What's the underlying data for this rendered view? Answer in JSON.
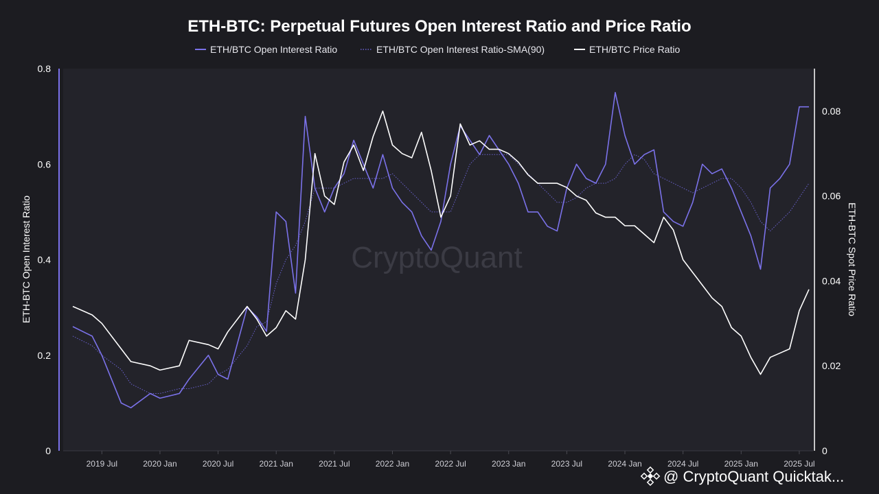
{
  "chart_data": {
    "type": "line",
    "title": "ETH-BTC: Perpetual Futures Open Interest Ratio and Price Ratio",
    "ylabel_left": "ETH-BTC Open Interest Ratio",
    "ylabel_right": "ETH-BTC Spot Price Ratio",
    "ylim_left": [
      0,
      0.8
    ],
    "ylim_right": [
      0,
      0.09
    ],
    "yticks_left": [
      "0",
      "0.2",
      "0.4",
      "0.6",
      "0.8"
    ],
    "yticks_right": [
      "0",
      "0.02",
      "0.04",
      "0.06",
      "0.08"
    ],
    "x_tick_labels": [
      "2019 Jul",
      "2020 Jan",
      "2020 Jul",
      "2021 Jan",
      "2021 Jul",
      "2022 Jan",
      "2022 Jul",
      "2023 Jan",
      "2023 Jul",
      "2024 Jan",
      "2024 Jul",
      "2025 Jan",
      "2025 Jul"
    ],
    "legend_position": "top-center",
    "grid": false,
    "x_dates": [
      "2019-04",
      "2019-06",
      "2019-07",
      "2019-09",
      "2019-10",
      "2019-12",
      "2020-01",
      "2020-03",
      "2020-04",
      "2020-06",
      "2020-07",
      "2020-08",
      "2020-10",
      "2020-11",
      "2020-12",
      "2021-01",
      "2021-02",
      "2021-03",
      "2021-04",
      "2021-05",
      "2021-06",
      "2021-07",
      "2021-08",
      "2021-09",
      "2021-10",
      "2021-11",
      "2021-12",
      "2022-01",
      "2022-02",
      "2022-03",
      "2022-04",
      "2022-05",
      "2022-06",
      "2022-07",
      "2022-08",
      "2022-09",
      "2022-10",
      "2022-11",
      "2022-12",
      "2023-01",
      "2023-02",
      "2023-03",
      "2023-04",
      "2023-05",
      "2023-06",
      "2023-07",
      "2023-08",
      "2023-09",
      "2023-10",
      "2023-11",
      "2023-12",
      "2024-01",
      "2024-02",
      "2024-03",
      "2024-04",
      "2024-05",
      "2024-06",
      "2024-07",
      "2024-08",
      "2024-09",
      "2024-10",
      "2024-11",
      "2024-12",
      "2025-01",
      "2025-02",
      "2025-03",
      "2025-04",
      "2025-05",
      "2025-06",
      "2025-07",
      "2025-08"
    ],
    "series": [
      {
        "name": "ETH/BTC Open Interest Ratio",
        "axis": "left",
        "color": "#7b72ea",
        "style": "solid",
        "values": [
          0.26,
          0.24,
          0.2,
          0.1,
          0.09,
          0.12,
          0.11,
          0.12,
          0.15,
          0.2,
          0.16,
          0.15,
          0.3,
          0.28,
          0.25,
          0.5,
          0.48,
          0.33,
          0.7,
          0.55,
          0.5,
          0.55,
          0.58,
          0.65,
          0.6,
          0.55,
          0.62,
          0.55,
          0.52,
          0.5,
          0.45,
          0.42,
          0.48,
          0.6,
          0.68,
          0.65,
          0.62,
          0.66,
          0.63,
          0.6,
          0.56,
          0.5,
          0.5,
          0.47,
          0.46,
          0.55,
          0.6,
          0.57,
          0.56,
          0.6,
          0.75,
          0.66,
          0.6,
          0.62,
          0.63,
          0.5,
          0.48,
          0.47,
          0.52,
          0.6,
          0.58,
          0.59,
          0.55,
          0.5,
          0.45,
          0.38,
          0.55,
          0.57,
          0.6,
          0.72,
          0.72
        ]
      },
      {
        "name": "ETH/BTC Open Interest Ratio-SMA(90)",
        "axis": "left",
        "color": "#6a62d0",
        "style": "dotted",
        "values": [
          0.24,
          0.22,
          0.2,
          0.17,
          0.14,
          0.12,
          0.12,
          0.13,
          0.13,
          0.14,
          0.16,
          0.17,
          0.22,
          0.26,
          0.27,
          0.35,
          0.4,
          0.43,
          0.48,
          0.55,
          0.55,
          0.55,
          0.56,
          0.57,
          0.57,
          0.57,
          0.57,
          0.58,
          0.56,
          0.54,
          0.52,
          0.5,
          0.5,
          0.5,
          0.55,
          0.6,
          0.62,
          0.62,
          0.62,
          0.62,
          0.6,
          0.58,
          0.56,
          0.54,
          0.52,
          0.52,
          0.53,
          0.55,
          0.56,
          0.56,
          0.57,
          0.6,
          0.62,
          0.61,
          0.58,
          0.57,
          0.56,
          0.55,
          0.54,
          0.55,
          0.56,
          0.57,
          0.57,
          0.55,
          0.52,
          0.48,
          0.46,
          0.48,
          0.5,
          0.53,
          0.56
        ]
      },
      {
        "name": "ETH/BTC Price Ratio",
        "axis": "right",
        "color": "#ffffff",
        "style": "solid",
        "values": [
          0.034,
          0.032,
          0.03,
          0.024,
          0.021,
          0.02,
          0.019,
          0.02,
          0.026,
          0.025,
          0.024,
          0.028,
          0.034,
          0.031,
          0.027,
          0.029,
          0.033,
          0.031,
          0.045,
          0.07,
          0.06,
          0.058,
          0.068,
          0.072,
          0.066,
          0.074,
          0.08,
          0.072,
          0.07,
          0.069,
          0.075,
          0.066,
          0.055,
          0.06,
          0.077,
          0.072,
          0.073,
          0.071,
          0.071,
          0.07,
          0.068,
          0.065,
          0.063,
          0.063,
          0.063,
          0.062,
          0.06,
          0.059,
          0.056,
          0.055,
          0.055,
          0.053,
          0.053,
          0.051,
          0.049,
          0.055,
          0.052,
          0.045,
          0.042,
          0.039,
          0.036,
          0.034,
          0.029,
          0.027,
          0.022,
          0.018,
          0.022,
          0.023,
          0.024,
          0.033,
          0.038
        ]
      }
    ]
  },
  "watermark": "CryptoQuant",
  "credit": {
    "icon": "binance-diamond-icon",
    "text": "@ CryptoQuant Quicktak..."
  }
}
